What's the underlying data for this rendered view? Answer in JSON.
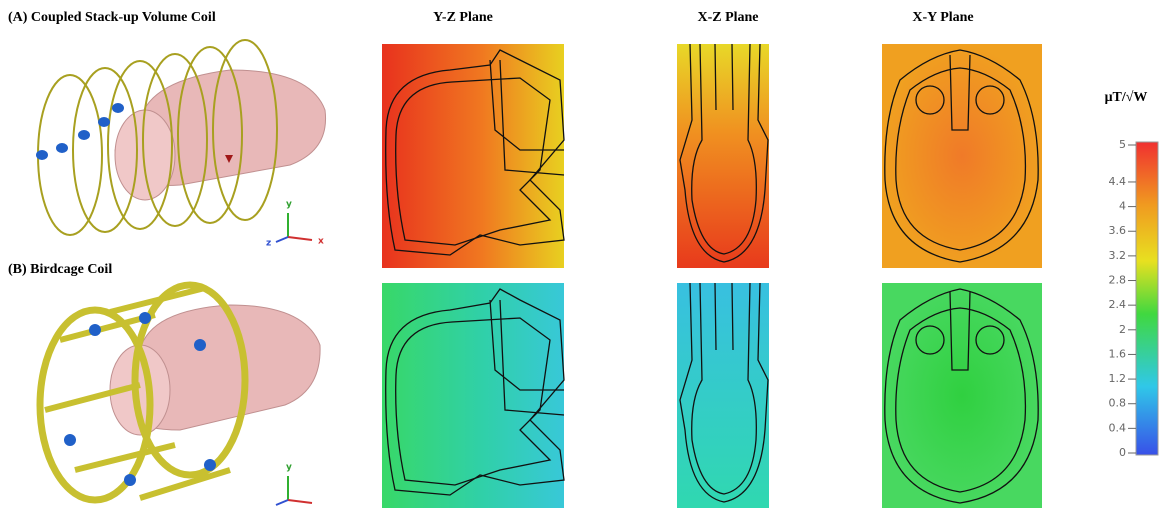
{
  "figure": {
    "panel_a_title": "(A) Coupled Stack-up Volume Coil",
    "panel_b_title": "(B) Birdcage Coil",
    "column_titles": [
      "Y-Z Plane",
      "X-Z Plane",
      "X-Y Plane"
    ],
    "axis_labels": [
      "y",
      "z",
      "x"
    ],
    "colorbar": {
      "label": "μT/√W",
      "range": [
        0,
        5
      ],
      "ticks": [
        0,
        0.4,
        0.8,
        1.2,
        1.6,
        2,
        2.4,
        2.8,
        3.2,
        3.6,
        4,
        4.4,
        5
      ]
    }
  }
}
